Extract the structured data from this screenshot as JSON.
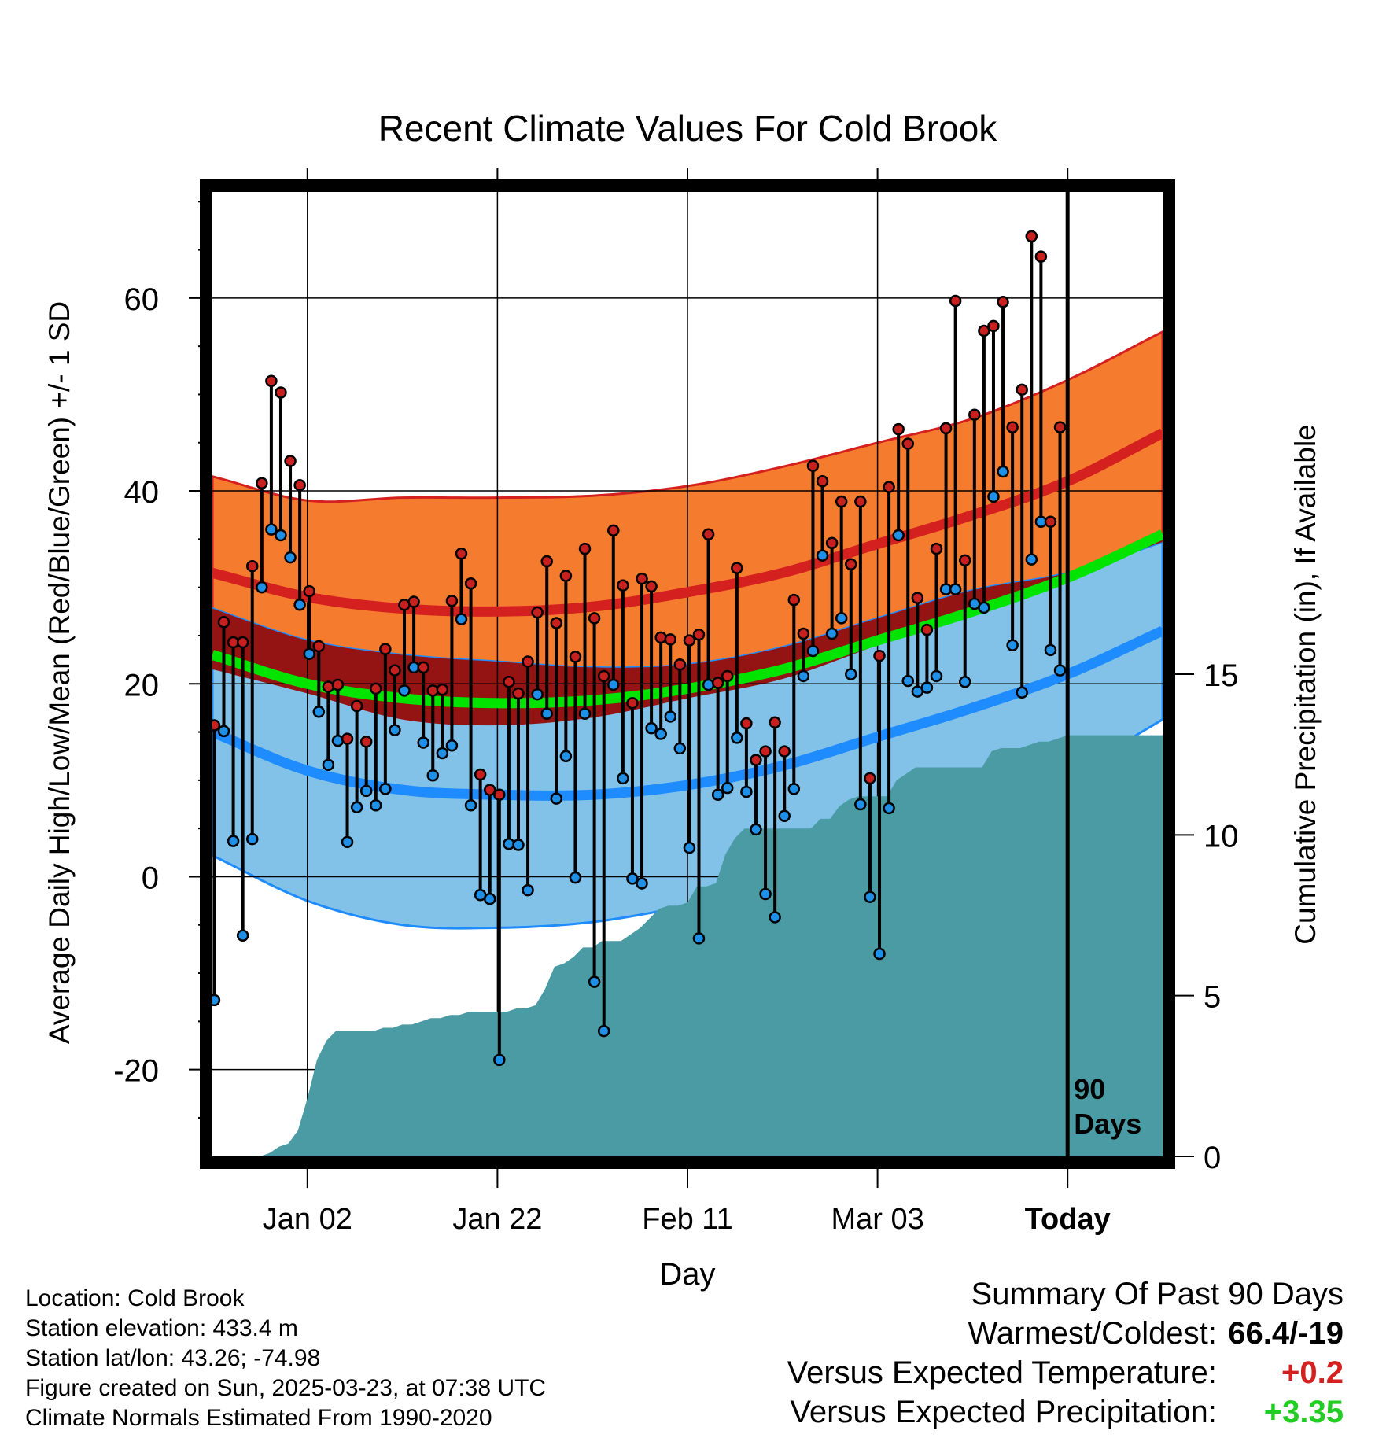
{
  "chart_data": {
    "type": "line",
    "title": "Recent Climate Values For Cold Brook",
    "xlabel": "Day",
    "ylabel_left": "Average Daily High/Low/Mean (Red/Blue/Green) +/- 1 SD",
    "ylabel_right": "Cumulative Precipitation (in), If Available",
    "x_ticks": [
      {
        "day": 10,
        "label": "Jan 02"
      },
      {
        "day": 30,
        "label": "Jan 22"
      },
      {
        "day": 50,
        "label": "Feb 11"
      },
      {
        "day": 70,
        "label": "Mar 03"
      },
      {
        "day": 90,
        "label": "Today"
      }
    ],
    "xlim": [
      0,
      100
    ],
    "ylim": [
      -29,
      71
    ],
    "y_ticks": [
      -20,
      0,
      20,
      40,
      60
    ],
    "precip_ylim": [
      0,
      30
    ],
    "precip_ticks": [
      0,
      5,
      10,
      15
    ],
    "today_marker": {
      "day": 90,
      "label_line1": "90",
      "label_line2": "Days"
    },
    "normals_days": [
      0,
      10,
      20,
      30,
      40,
      50,
      60,
      70,
      80,
      90,
      100
    ],
    "normal_high": [
      31.5,
      29,
      27.8,
      27.5,
      28,
      29.5,
      31.5,
      34.5,
      37.5,
      41,
      46
    ],
    "normal_high_sd": [
      10,
      10,
      11.5,
      11.8,
      11.5,
      11,
      11,
      10.5,
      10,
      10.5,
      10.5
    ],
    "normal_low": [
      15,
      11,
      9,
      8.5,
      8.5,
      9.5,
      11.5,
      14.5,
      17.5,
      21,
      25.5
    ],
    "normal_low_sd": [
      12.8,
      13.5,
      14,
      13.8,
      13.2,
      12.5,
      12.3,
      12.3,
      12.2,
      10.5,
      9.2
    ],
    "normal_mean": [
      23,
      20,
      18.5,
      18,
      18.3,
      19.5,
      21.5,
      24.5,
      27.5,
      31,
      35.5
    ],
    "daily_high": [
      15.7,
      26.4,
      24.3,
      24.3,
      32.2,
      40.8,
      51.4,
      50.2,
      43.1,
      40.6,
      29.6,
      23.9,
      19.7,
      19.9,
      14.3,
      17.7,
      14,
      19.5,
      23.6,
      21.4,
      28.2,
      28.5,
      21.7,
      19.3,
      19.4,
      28.6,
      33.5,
      30.4,
      10.6,
      9,
      8.5,
      20.2,
      19,
      22.3,
      27.4,
      32.7,
      26.3,
      31.2,
      22.8,
      34,
      26.8,
      20.8,
      35.9,
      30.2,
      18,
      30.9,
      30.1,
      24.8,
      24.6,
      22,
      24.5,
      25.1,
      35.5,
      20.1,
      20.8,
      32,
      15.9,
      12.1,
      13,
      16,
      13,
      28.7,
      25.2,
      42.6,
      41,
      34.6,
      38.9,
      32.4,
      38.9,
      10.2,
      22.9,
      40.4,
      46.4,
      44.9,
      28.9,
      25.6,
      34,
      46.5,
      59.7,
      32.8,
      47.9,
      56.6,
      57.1,
      59.6,
      46.6,
      50.5,
      66.4,
      64.3,
      36.8,
      46.6
    ],
    "daily_low": [
      -12.8,
      15.1,
      3.7,
      -6.1,
      3.9,
      30,
      36,
      35.4,
      33.1,
      28.2,
      23.1,
      17.1,
      11.6,
      14.1,
      3.6,
      7.2,
      8.9,
      7.4,
      9.1,
      15.2,
      19.3,
      21.7,
      13.9,
      10.5,
      12.8,
      13.6,
      26.7,
      7.4,
      -1.9,
      -2.3,
      -19,
      3.4,
      3.3,
      -1.4,
      18.9,
      16.9,
      8.1,
      12.5,
      -0.1,
      16.9,
      -10.9,
      -16,
      19.9,
      10.2,
      -0.2,
      -0.7,
      15.4,
      14.8,
      16.6,
      13.3,
      3,
      -6.4,
      19.9,
      8.5,
      9.2,
      14.4,
      8.8,
      4.9,
      -1.8,
      -4.2,
      6.3,
      9.1,
      20.8,
      23.4,
      33.3,
      25.2,
      26.8,
      21,
      7.5,
      -2.1,
      -8,
      7.1,
      35.4,
      20.3,
      19.2,
      19.6,
      20.8,
      29.8,
      29.8,
      20.2,
      28.3,
      27.9,
      39.4,
      42,
      24,
      19.1,
      32.9,
      36.8,
      23.5,
      21.4
    ],
    "precip_cumulative": [
      0,
      0,
      0,
      0,
      0,
      0,
      0.1,
      0.3,
      0.4,
      0.8,
      1.8,
      3,
      3.6,
      3.9,
      3.9,
      3.9,
      3.9,
      3.9,
      4.0,
      4.0,
      4.1,
      4.1,
      4.2,
      4.3,
      4.3,
      4.4,
      4.4,
      4.5,
      4.5,
      4.5,
      4.5,
      4.5,
      4.6,
      4.6,
      4.7,
      5.2,
      5.9,
      6.0,
      6.2,
      6.5,
      6.5,
      6.7,
      6.7,
      6.7,
      6.9,
      7.1,
      7.4,
      7.7,
      7.8,
      7.8,
      7.9,
      8.4,
      8.4,
      8.5,
      9.4,
      9.9,
      10.2,
      10.2,
      10.2,
      10.2,
      10.2,
      10.2,
      10.2,
      10.2,
      10.5,
      10.5,
      10.9,
      11.1,
      11.2,
      11.2,
      11.2,
      11.2,
      11.7,
      11.9,
      12.1,
      12.1,
      12.1,
      12.1,
      12.1,
      12.1,
      12.1,
      12.1,
      12.6,
      12.7,
      12.7,
      12.7,
      12.8,
      12.9,
      12.9,
      13.0,
      13.1,
      13.1,
      13.1,
      13.1,
      13.1,
      13.1,
      13.1,
      13.1,
      13.1,
      13.1,
      13.1
    ],
    "colors": {
      "high_band": "#f57c2e",
      "high_line": "#d4201e",
      "mean_band": "#941414",
      "mean_line": "#00e400",
      "low_band": "#82c2e8",
      "low_line": "#1e8cff",
      "precip": "#4a9ba4",
      "high_marker": "#c8201e",
      "low_marker": "#1e90e8"
    }
  },
  "footer": {
    "location": "Location: Cold Brook",
    "elevation": "Station elevation: 433.4 m",
    "latlon": "Station lat/lon: 43.26; -74.98",
    "created": "Figure created on Sun, 2025-03-23, at 07:38 UTC",
    "normals": "Climate Normals Estimated From 1990-2020"
  },
  "summary": {
    "title": "Summary Of Past 90 Days",
    "warmest_label": "Warmest/Coldest:",
    "warmest_value": "66.4/-19",
    "temp_label": "Versus Expected Temperature:",
    "temp_value": "+0.2",
    "temp_color": "#d4201e",
    "precip_label": "Versus Expected Precipitation:",
    "precip_value": "+3.35",
    "precip_color": "#22cc22"
  }
}
